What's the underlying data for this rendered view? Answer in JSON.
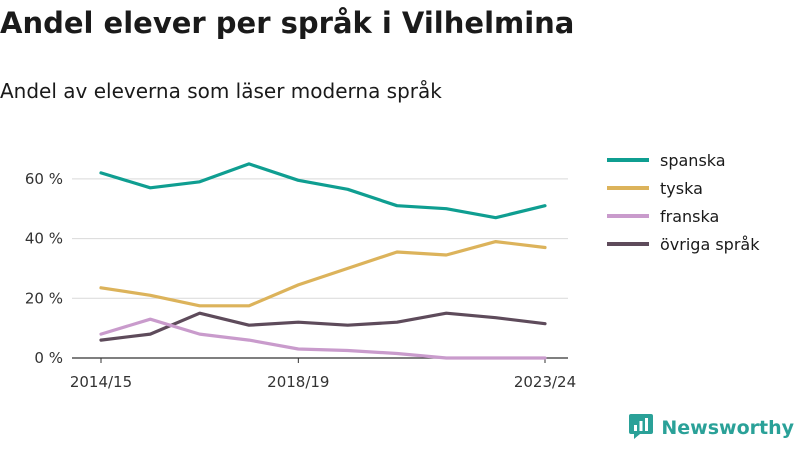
{
  "header": {
    "title": "Andel elever per språk i Vilhelmina",
    "subtitle": "Andel av eleverna som läser moderna språk"
  },
  "brand": {
    "name": "Newsworthy",
    "color": "#2aa198",
    "icon": "newsworthy-logo-icon"
  },
  "chart_data": {
    "type": "line",
    "x": [
      "2014/15",
      "2015/16",
      "2016/17",
      "2017/18",
      "2018/19",
      "2019/20",
      "2020/21",
      "2021/22",
      "2022/23",
      "2023/24"
    ],
    "x_tick_labels": [
      "2014/15",
      "2018/19",
      "2023/24"
    ],
    "y_ticks": [
      0,
      20,
      40,
      60
    ],
    "y_tick_labels": [
      "0 %",
      "20 %",
      "40 %",
      "60 %"
    ],
    "ylim": [
      0,
      70
    ],
    "grid": true,
    "legend_position": "right",
    "xlabel": "",
    "ylabel": "",
    "series": [
      {
        "name": "spanska",
        "color": "#0f9e91",
        "values": [
          62,
          57,
          59,
          65,
          59.5,
          56.5,
          51,
          50,
          47,
          51
        ]
      },
      {
        "name": "tyska",
        "color": "#dcb35b",
        "values": [
          23.5,
          21,
          17.5,
          17.5,
          24.5,
          30,
          35.5,
          34.5,
          39,
          37
        ]
      },
      {
        "name": "franska",
        "color": "#c99bcc",
        "values": [
          8,
          13,
          8,
          6,
          3,
          2.5,
          1.5,
          0,
          0,
          0
        ]
      },
      {
        "name": "övriga språk",
        "color": "#5e4b5b",
        "values": [
          6,
          8,
          15,
          11,
          12,
          11,
          12,
          15,
          13.5,
          11.5
        ]
      }
    ]
  }
}
